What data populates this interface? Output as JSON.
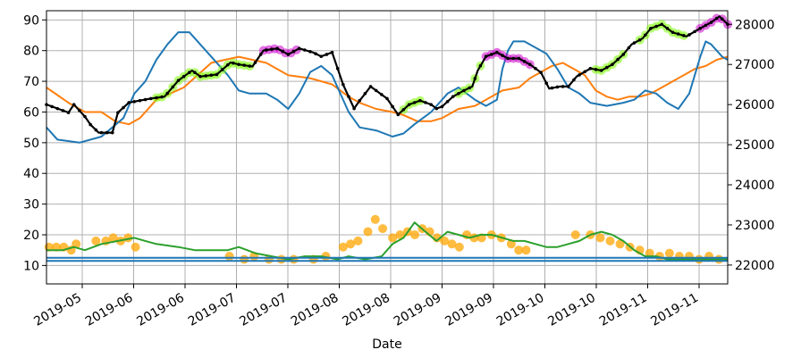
{
  "chart_data": {
    "type": "line",
    "xlabel": "Date",
    "x_tick_labels": [
      "2019-05",
      "2019-06",
      "2019-06",
      "2019-07",
      "2019-07",
      "2019-08",
      "2019-08",
      "2019-09",
      "2019-09",
      "2019-10",
      "2019-10",
      "2019-11",
      "2019-11"
    ],
    "left_axis": {
      "ylim": [
        4,
        93
      ],
      "ticks": [
        10,
        20,
        30,
        40,
        50,
        60,
        70,
        80,
        90
      ]
    },
    "right_axis": {
      "ylim": [
        21530,
        28340
      ],
      "ticks": [
        22000,
        23000,
        24000,
        25000,
        26000,
        27000,
        28000
      ]
    },
    "grid": true,
    "n_days": 220,
    "colors": {
      "price": "#000000",
      "orange": "#ff7f0e",
      "blue": "#1f77b4",
      "green": "#2ca02c",
      "highlight_up": "#7cfc00",
      "highlight_down": "#cc00cc",
      "highlight_indicator": "#ffa500"
    },
    "series": [
      {
        "axis": "right",
        "color_key": "price",
        "points": [
          [
            0,
            26000
          ],
          [
            4,
            25900
          ],
          [
            8,
            25800
          ],
          [
            10,
            26000
          ],
          [
            14,
            25700
          ],
          [
            16,
            25500
          ],
          [
            19,
            25300
          ],
          [
            24,
            25300
          ],
          [
            26,
            25800
          ],
          [
            30,
            26050
          ],
          [
            38,
            26150
          ],
          [
            43,
            26200
          ],
          [
            48,
            26600
          ],
          [
            53,
            26850
          ],
          [
            56,
            26700
          ],
          [
            62,
            26750
          ],
          [
            67,
            27050
          ],
          [
            70,
            27000
          ],
          [
            75,
            26950
          ],
          [
            79,
            27350
          ],
          [
            84,
            27400
          ],
          [
            88,
            27250
          ],
          [
            92,
            27400
          ],
          [
            97,
            27300
          ],
          [
            100,
            27200
          ],
          [
            104,
            27300
          ],
          [
            108,
            26500
          ],
          [
            112,
            25900
          ],
          [
            114,
            26100
          ],
          [
            118,
            26450
          ],
          [
            121,
            26300
          ],
          [
            124,
            26150
          ],
          [
            128,
            25750
          ],
          [
            132,
            26000
          ],
          [
            136,
            26100
          ],
          [
            140,
            26000
          ],
          [
            142,
            25900
          ],
          [
            144,
            25950
          ],
          [
            148,
            26200
          ],
          [
            152,
            26350
          ],
          [
            155,
            26450
          ],
          [
            157,
            26850
          ],
          [
            160,
            27200
          ],
          [
            164,
            27300
          ],
          [
            168,
            27150
          ],
          [
            172,
            27150
          ],
          [
            176,
            27000
          ],
          [
            180,
            26800
          ],
          [
            183,
            26400
          ],
          [
            187,
            26450
          ],
          [
            190,
            26450
          ],
          [
            193,
            26700
          ],
          [
            198,
            26900
          ],
          [
            202,
            26850
          ],
          [
            206,
            27000
          ],
          [
            210,
            27250
          ],
          [
            213,
            27500
          ],
          [
            217,
            27650
          ],
          [
            220,
            27900
          ],
          [
            224,
            28000
          ],
          [
            228,
            27800
          ],
          [
            233,
            27700
          ],
          [
            238,
            27900
          ],
          [
            242,
            28050
          ],
          [
            245,
            28200
          ],
          [
            248,
            28000
          ]
        ]
      },
      {
        "axis": "left",
        "color_key": "orange",
        "points": [
          [
            0,
            68
          ],
          [
            8,
            63
          ],
          [
            14,
            60
          ],
          [
            20,
            60
          ],
          [
            25,
            57
          ],
          [
            30,
            56
          ],
          [
            34,
            58
          ],
          [
            40,
            64
          ],
          [
            50,
            68
          ],
          [
            60,
            76
          ],
          [
            65,
            77
          ],
          [
            70,
            78
          ],
          [
            75,
            77
          ],
          [
            80,
            76
          ],
          [
            88,
            72
          ],
          [
            96,
            71
          ],
          [
            104,
            69
          ],
          [
            110,
            65
          ],
          [
            114,
            63
          ],
          [
            120,
            61
          ],
          [
            126,
            60
          ],
          [
            130,
            59
          ],
          [
            135,
            57
          ],
          [
            140,
            57
          ],
          [
            144,
            58
          ],
          [
            150,
            61
          ],
          [
            156,
            62
          ],
          [
            160,
            64
          ],
          [
            166,
            67
          ],
          [
            172,
            68
          ],
          [
            176,
            71
          ],
          [
            180,
            73
          ],
          [
            184,
            75
          ],
          [
            188,
            76
          ],
          [
            192,
            74
          ],
          [
            196,
            72
          ],
          [
            200,
            67
          ],
          [
            204,
            65
          ],
          [
            208,
            64
          ],
          [
            212,
            65
          ],
          [
            216,
            65
          ],
          [
            220,
            66
          ],
          [
            224,
            68
          ],
          [
            228,
            70
          ],
          [
            232,
            72
          ],
          [
            236,
            74
          ],
          [
            240,
            75
          ],
          [
            244,
            77
          ],
          [
            248,
            78
          ]
        ]
      },
      {
        "axis": "left",
        "color_key": "blue",
        "points": [
          [
            0,
            55
          ],
          [
            4,
            51
          ],
          [
            12,
            50
          ],
          [
            20,
            52
          ],
          [
            24,
            55
          ],
          [
            28,
            58
          ],
          [
            32,
            66
          ],
          [
            36,
            70
          ],
          [
            40,
            77
          ],
          [
            44,
            82
          ],
          [
            48,
            86
          ],
          [
            52,
            86
          ],
          [
            56,
            82
          ],
          [
            62,
            76
          ],
          [
            66,
            72
          ],
          [
            70,
            67
          ],
          [
            74,
            66
          ],
          [
            80,
            66
          ],
          [
            84,
            64
          ],
          [
            88,
            61
          ],
          [
            92,
            66
          ],
          [
            96,
            73
          ],
          [
            100,
            75
          ],
          [
            104,
            72
          ],
          [
            110,
            60
          ],
          [
            114,
            55
          ],
          [
            120,
            54
          ],
          [
            126,
            52
          ],
          [
            130,
            53
          ],
          [
            134,
            56
          ],
          [
            140,
            60
          ],
          [
            146,
            66
          ],
          [
            150,
            68
          ],
          [
            156,
            64
          ],
          [
            160,
            62
          ],
          [
            164,
            64
          ],
          [
            166,
            74
          ],
          [
            168,
            80
          ],
          [
            170,
            83
          ],
          [
            174,
            83
          ],
          [
            178,
            81
          ],
          [
            182,
            79
          ],
          [
            186,
            74
          ],
          [
            190,
            68
          ],
          [
            194,
            66
          ],
          [
            198,
            63
          ],
          [
            204,
            62
          ],
          [
            210,
            63
          ],
          [
            214,
            64
          ],
          [
            218,
            67
          ],
          [
            222,
            66
          ],
          [
            226,
            63
          ],
          [
            230,
            61
          ],
          [
            234,
            66
          ],
          [
            238,
            78
          ],
          [
            240,
            83
          ],
          [
            242,
            82
          ],
          [
            246,
            78
          ],
          [
            248,
            77
          ]
        ]
      },
      {
        "axis": "left",
        "color_key": "green",
        "points": [
          [
            0,
            15
          ],
          [
            6,
            15
          ],
          [
            10,
            16
          ],
          [
            14,
            15
          ],
          [
            20,
            17
          ],
          [
            26,
            18
          ],
          [
            32,
            19
          ],
          [
            36,
            18
          ],
          [
            40,
            17
          ],
          [
            48,
            16
          ],
          [
            54,
            15
          ],
          [
            60,
            15
          ],
          [
            66,
            15
          ],
          [
            70,
            16
          ],
          [
            76,
            14
          ],
          [
            82,
            13
          ],
          [
            88,
            12
          ],
          [
            94,
            13
          ],
          [
            100,
            13
          ],
          [
            106,
            12
          ],
          [
            110,
            13
          ],
          [
            116,
            12
          ],
          [
            122,
            13
          ],
          [
            126,
            17
          ],
          [
            130,
            19
          ],
          [
            134,
            24
          ],
          [
            138,
            21
          ],
          [
            142,
            18
          ],
          [
            146,
            21
          ],
          [
            150,
            20
          ],
          [
            154,
            19
          ],
          [
            158,
            20
          ],
          [
            162,
            20
          ],
          [
            166,
            19
          ],
          [
            170,
            18
          ],
          [
            174,
            18
          ],
          [
            178,
            17
          ],
          [
            182,
            16
          ],
          [
            186,
            16
          ],
          [
            190,
            17
          ],
          [
            194,
            18
          ],
          [
            198,
            20
          ],
          [
            202,
            21
          ],
          [
            206,
            20
          ],
          [
            210,
            18
          ],
          [
            214,
            15
          ],
          [
            218,
            13
          ],
          [
            222,
            13
          ],
          [
            226,
            12
          ],
          [
            230,
            12
          ],
          [
            236,
            12
          ],
          [
            240,
            12
          ],
          [
            244,
            12
          ],
          [
            248,
            12
          ]
        ]
      },
      {
        "axis": "left",
        "color_key": "blue",
        "points": [
          [
            0,
            12.5
          ],
          [
            248,
            12.5
          ]
        ]
      },
      {
        "axis": "left",
        "color_key": "blue",
        "points": [
          [
            0,
            11.5
          ],
          [
            248,
            11.5
          ]
        ]
      }
    ],
    "highlight_ranges": [
      {
        "series": 0,
        "color_key": "highlight_up",
        "from": 40,
        "to": 75
      },
      {
        "series": 0,
        "color_key": "highlight_down",
        "from": 80,
        "to": 92
      },
      {
        "series": 0,
        "color_key": "highlight_up",
        "from": 118,
        "to": 124
      },
      {
        "series": 0,
        "color_key": "highlight_up",
        "from": 170,
        "to": 182
      },
      {
        "series": 0,
        "color_key": "highlight_down",
        "from": 190,
        "to": 210
      },
      {
        "series": 0,
        "color_key": "highlight_up",
        "from": 215,
        "to": 230
      },
      {
        "series": 0,
        "color_key": "highlight_up",
        "from": 280,
        "to": 310
      },
      {
        "series": 0,
        "color_key": "highlight_up",
        "from": 320,
        "to": 360
      },
      {
        "series": 0,
        "color_key": "highlight_down",
        "from": 335,
        "to": 345
      },
      {
        "series": 0,
        "color_key": "highlight_up",
        "from": 395,
        "to": 420
      },
      {
        "series": 0,
        "color_key": "highlight_down",
        "from": 430,
        "to": 450
      }
    ],
    "indicator_markers": [
      [
        1,
        16
      ],
      [
        4,
        16
      ],
      [
        7,
        16
      ],
      [
        10,
        15
      ],
      [
        12,
        17
      ],
      [
        20,
        18
      ],
      [
        24,
        18
      ],
      [
        27,
        19
      ],
      [
        30,
        18
      ],
      [
        33,
        19
      ],
      [
        36,
        16
      ],
      [
        74,
        13
      ],
      [
        80,
        12
      ],
      [
        84,
        13
      ],
      [
        90,
        12
      ],
      [
        95,
        12
      ],
      [
        100,
        12
      ],
      [
        108,
        12
      ],
      [
        113,
        13
      ],
      [
        120,
        16
      ],
      [
        123,
        17
      ],
      [
        126,
        18
      ],
      [
        130,
        21
      ],
      [
        133,
        25
      ],
      [
        136,
        22
      ],
      [
        140,
        19
      ],
      [
        143,
        20
      ],
      [
        146,
        21
      ],
      [
        149,
        20
      ],
      [
        152,
        22
      ],
      [
        155,
        21
      ],
      [
        158,
        19
      ],
      [
        161,
        18
      ],
      [
        164,
        17
      ],
      [
        167,
        16
      ],
      [
        170,
        20
      ],
      [
        173,
        19
      ],
      [
        176,
        19
      ],
      [
        180,
        20
      ],
      [
        184,
        19
      ],
      [
        188,
        17
      ],
      [
        191,
        15
      ],
      [
        194,
        15
      ],
      [
        214,
        20
      ],
      [
        220,
        20
      ],
      [
        224,
        19
      ],
      [
        228,
        18
      ],
      [
        232,
        17
      ],
      [
        236,
        16
      ],
      [
        240,
        15
      ],
      [
        244,
        14
      ],
      [
        248,
        13
      ],
      [
        252,
        14
      ],
      [
        256,
        13
      ],
      [
        260,
        13
      ],
      [
        264,
        12
      ],
      [
        268,
        13
      ],
      [
        272,
        12
      ],
      [
        276,
        13
      ]
    ]
  }
}
